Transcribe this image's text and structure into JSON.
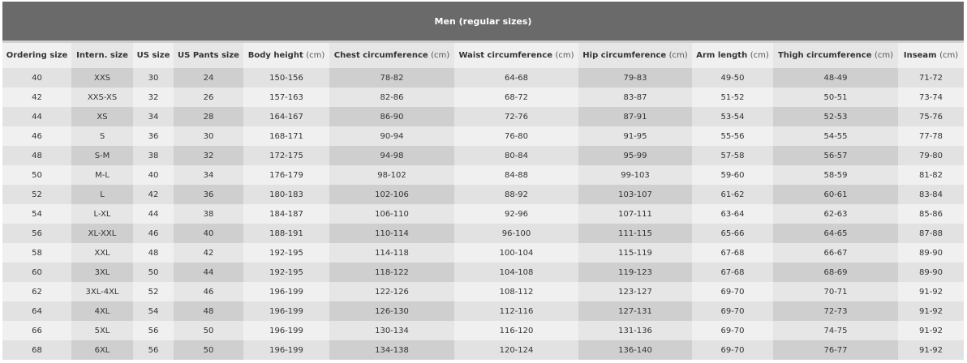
{
  "title": "Men (regular sizes)",
  "columns": [
    {
      "label": "Ordering size",
      "unit": ""
    },
    {
      "label": "Intern. size",
      "unit": ""
    },
    {
      "label": "US size",
      "unit": ""
    },
    {
      "label": "US Pants size",
      "unit": ""
    },
    {
      "label": "Body height",
      "unit": "(cm)"
    },
    {
      "label": "Chest circumference",
      "unit": "(cm)"
    },
    {
      "label": "Waist circumference",
      "unit": "(cm)"
    },
    {
      "label": "Hip circumference",
      "unit": "(cm)"
    },
    {
      "label": "Arm length",
      "unit": "(cm)"
    },
    {
      "label": "Thigh circumference",
      "unit": "(cm)"
    },
    {
      "label": "Inseam",
      "unit": "(cm)"
    }
  ],
  "rows": [
    [
      "40",
      "XXS",
      "30",
      "24",
      "150-156",
      "78-82",
      "64-68",
      "79-83",
      "49-50",
      "48-49",
      "71-72"
    ],
    [
      "42",
      "XXS-XS",
      "32",
      "26",
      "157-163",
      "82-86",
      "68-72",
      "83-87",
      "51-52",
      "50-51",
      "73-74"
    ],
    [
      "44",
      "XS",
      "34",
      "28",
      "164-167",
      "86-90",
      "72-76",
      "87-91",
      "53-54",
      "52-53",
      "75-76"
    ],
    [
      "46",
      "S",
      "36",
      "30",
      "168-171",
      "90-94",
      "76-80",
      "91-95",
      "55-56",
      "54-55",
      "77-78"
    ],
    [
      "48",
      "S-M",
      "38",
      "32",
      "172-175",
      "94-98",
      "80-84",
      "95-99",
      "57-58",
      "56-57",
      "79-80"
    ],
    [
      "50",
      "M-L",
      "40",
      "34",
      "176-179",
      "98-102",
      "84-88",
      "99-103",
      "59-60",
      "58-59",
      "81-82"
    ],
    [
      "52",
      "L",
      "42",
      "36",
      "180-183",
      "102-106",
      "88-92",
      "103-107",
      "61-62",
      "60-61",
      "83-84"
    ],
    [
      "54",
      "L-XL",
      "44",
      "38",
      "184-187",
      "106-110",
      "92-96",
      "107-111",
      "63-64",
      "62-63",
      "85-86"
    ],
    [
      "56",
      "XL-XXL",
      "46",
      "40",
      "188-191",
      "110-114",
      "96-100",
      "111-115",
      "65-66",
      "64-65",
      "87-88"
    ],
    [
      "58",
      "XXL",
      "48",
      "42",
      "192-195",
      "114-118",
      "100-104",
      "115-119",
      "67-68",
      "66-67",
      "89-90"
    ],
    [
      "60",
      "3XL",
      "50",
      "44",
      "192-195",
      "118-122",
      "104-108",
      "119-123",
      "67-68",
      "68-69",
      "89-90"
    ],
    [
      "62",
      "3XL-4XL",
      "52",
      "46",
      "196-199",
      "122-126",
      "108-112",
      "123-127",
      "69-70",
      "70-71",
      "91-92"
    ],
    [
      "64",
      "4XL",
      "54",
      "48",
      "196-199",
      "126-130",
      "112-116",
      "127-131",
      "69-70",
      "72-73",
      "91-92"
    ],
    [
      "66",
      "5XL",
      "56",
      "50",
      "196-199",
      "130-134",
      "116-120",
      "131-136",
      "69-70",
      "74-75",
      "91-92"
    ],
    [
      "68",
      "6XL",
      "56",
      "50",
      "196-199",
      "134-138",
      "120-124",
      "136-140",
      "69-70",
      "76-77",
      "91-92"
    ]
  ]
}
